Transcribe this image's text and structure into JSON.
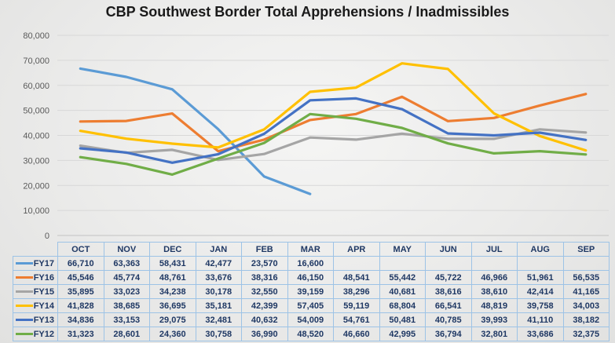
{
  "title": "CBP Southwest Border Total Apprehensions / Inadmissibles",
  "chart_data": {
    "type": "line",
    "title": "CBP Southwest Border Total Apprehensions / Inadmissibles",
    "categories": [
      "OCT",
      "NOV",
      "DEC",
      "JAN",
      "FEB",
      "MAR",
      "APR",
      "MAY",
      "JUN",
      "JUL",
      "AUG",
      "SEP"
    ],
    "series": [
      {
        "name": "FY17",
        "color": "#5B9BD5",
        "values": [
          66710,
          63363,
          58431,
          42477,
          23570,
          16600,
          null,
          null,
          null,
          null,
          null,
          null
        ]
      },
      {
        "name": "FY16",
        "color": "#ED7D31",
        "values": [
          45546,
          45774,
          48761,
          33676,
          38316,
          46150,
          48541,
          55442,
          45722,
          46966,
          51961,
          56535
        ]
      },
      {
        "name": "FY15",
        "color": "#A5A5A5",
        "values": [
          35895,
          33023,
          34238,
          30178,
          32550,
          39159,
          38296,
          40681,
          38616,
          38610,
          42414,
          41165
        ]
      },
      {
        "name": "FY14",
        "color": "#FFC000",
        "values": [
          41828,
          38685,
          36695,
          35181,
          42399,
          57405,
          59119,
          68804,
          66541,
          48819,
          39758,
          34003
        ]
      },
      {
        "name": "FY13",
        "color": "#4472C4",
        "values": [
          34836,
          33153,
          29075,
          32481,
          40632,
          54009,
          54761,
          50481,
          40785,
          39993,
          41110,
          38182
        ]
      },
      {
        "name": "FY12",
        "color": "#70AD47",
        "values": [
          31323,
          28601,
          24360,
          30758,
          36990,
          48520,
          46660,
          42995,
          36794,
          32801,
          33686,
          32375
        ]
      }
    ],
    "ylim": [
      0,
      80000
    ],
    "ytick_step": 10000,
    "ytick_labels": [
      "0",
      "10,000",
      "20,000",
      "30,000",
      "40,000",
      "50,000",
      "60,000",
      "70,000",
      "80,000"
    ],
    "grid": true,
    "legend_position": "table-left",
    "xlabel": "",
    "ylabel": ""
  }
}
